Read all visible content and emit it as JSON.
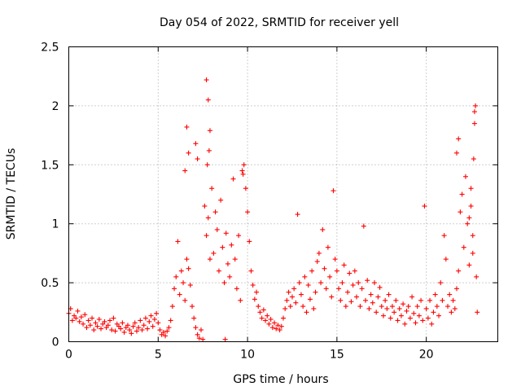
{
  "chart_data": {
    "type": "scatter",
    "title": "Day 054 of 2022, SRMTID for receiver yell",
    "xlabel": "GPS time / hours",
    "ylabel": "SRMTID / TECUs",
    "xlim": [
      0,
      24
    ],
    "ylim": [
      0,
      2.5
    ],
    "xticks": [
      0,
      5,
      10,
      15,
      20
    ],
    "yticks": [
      0,
      0.5,
      1,
      1.5,
      2,
      2.5
    ],
    "xtick_labels": [
      "0",
      "5",
      "10",
      "15",
      "20"
    ],
    "ytick_labels": [
      "0",
      "0.5",
      "1",
      "1.5",
      "2",
      "2.5"
    ],
    "grid": true,
    "marker": "+",
    "series_color": "#ff0000",
    "series": [
      {
        "name": "SRMTID",
        "points": [
          [
            0.0,
            0.24
          ],
          [
            0.1,
            0.28
          ],
          [
            0.2,
            0.18
          ],
          [
            0.3,
            0.22
          ],
          [
            0.4,
            0.2
          ],
          [
            0.5,
            0.26
          ],
          [
            0.6,
            0.17
          ],
          [
            0.7,
            0.21
          ],
          [
            0.8,
            0.15
          ],
          [
            0.9,
            0.23
          ],
          [
            1.0,
            0.12
          ],
          [
            1.1,
            0.18
          ],
          [
            1.2,
            0.14
          ],
          [
            1.3,
            0.2
          ],
          [
            1.4,
            0.1
          ],
          [
            1.5,
            0.16
          ],
          [
            1.6,
            0.13
          ],
          [
            1.7,
            0.19
          ],
          [
            1.8,
            0.11
          ],
          [
            1.9,
            0.15
          ],
          [
            2.0,
            0.17
          ],
          [
            2.1,
            0.12
          ],
          [
            2.2,
            0.14
          ],
          [
            2.3,
            0.18
          ],
          [
            2.4,
            0.1
          ],
          [
            2.5,
            0.2
          ],
          [
            2.6,
            0.09
          ],
          [
            2.7,
            0.15
          ],
          [
            2.8,
            0.13
          ],
          [
            2.9,
            0.11
          ],
          [
            3.0,
            0.16
          ],
          [
            3.1,
            0.08
          ],
          [
            3.2,
            0.12
          ],
          [
            3.3,
            0.14
          ],
          [
            3.4,
            0.1
          ],
          [
            3.5,
            0.07
          ],
          [
            3.6,
            0.13
          ],
          [
            3.7,
            0.16
          ],
          [
            3.8,
            0.09
          ],
          [
            3.9,
            0.12
          ],
          [
            4.0,
            0.18
          ],
          [
            4.1,
            0.1
          ],
          [
            4.2,
            0.14
          ],
          [
            4.3,
            0.2
          ],
          [
            4.4,
            0.11
          ],
          [
            4.5,
            0.17
          ],
          [
            4.6,
            0.22
          ],
          [
            4.7,
            0.13
          ],
          [
            4.8,
            0.19
          ],
          [
            4.9,
            0.24
          ],
          [
            5.0,
            0.16
          ],
          [
            5.1,
            0.1
          ],
          [
            5.2,
            0.06
          ],
          [
            5.3,
            0.08
          ],
          [
            5.4,
            0.05
          ],
          [
            5.5,
            0.09
          ],
          [
            5.6,
            0.12
          ],
          [
            5.7,
            0.18
          ],
          [
            5.8,
            0.3
          ],
          [
            5.9,
            0.45
          ],
          [
            6.0,
            0.55
          ],
          [
            6.1,
            0.85
          ],
          [
            6.2,
            0.4
          ],
          [
            6.3,
            0.6
          ],
          [
            6.4,
            0.5
          ],
          [
            6.5,
            0.35
          ],
          [
            6.6,
            0.7
          ],
          [
            6.7,
            0.62
          ],
          [
            6.8,
            0.48
          ],
          [
            6.9,
            0.3
          ],
          [
            7.0,
            0.2
          ],
          [
            7.1,
            0.12
          ],
          [
            7.2,
            0.06
          ],
          [
            7.3,
            0.03
          ],
          [
            7.4,
            0.1
          ],
          [
            7.5,
            0.02
          ],
          [
            7.6,
            1.15
          ],
          [
            7.7,
            0.9
          ],
          [
            7.8,
            1.05
          ],
          [
            7.9,
            0.7
          ],
          [
            6.6,
            1.82
          ],
          [
            6.7,
            1.6
          ],
          [
            7.1,
            1.68
          ],
          [
            7.2,
            1.55
          ],
          [
            6.5,
            1.45
          ],
          [
            7.7,
            2.22
          ],
          [
            7.8,
            2.05
          ],
          [
            7.9,
            1.79
          ],
          [
            7.85,
            1.62
          ],
          [
            7.75,
            1.5
          ],
          [
            8.0,
            1.3
          ],
          [
            8.1,
            0.75
          ],
          [
            8.2,
            1.1
          ],
          [
            8.3,
            0.95
          ],
          [
            8.4,
            0.6
          ],
          [
            8.5,
            1.2
          ],
          [
            8.6,
            0.8
          ],
          [
            8.7,
            0.5
          ],
          [
            8.8,
            0.92
          ],
          [
            8.9,
            0.66
          ],
          [
            9.0,
            0.55
          ],
          [
            9.1,
            0.82
          ],
          [
            9.2,
            1.38
          ],
          [
            9.3,
            0.7
          ],
          [
            9.4,
            0.45
          ],
          [
            9.5,
            0.9
          ],
          [
            9.6,
            0.35
          ],
          [
            9.7,
            1.45
          ],
          [
            9.8,
            1.5
          ],
          [
            9.9,
            1.3
          ],
          [
            10.0,
            1.1
          ],
          [
            10.1,
            0.85
          ],
          [
            10.2,
            0.6
          ],
          [
            10.3,
            0.48
          ],
          [
            10.4,
            0.36
          ],
          [
            10.5,
            0.42
          ],
          [
            10.6,
            0.3
          ],
          [
            10.7,
            0.25
          ],
          [
            10.8,
            0.2
          ],
          [
            10.9,
            0.27
          ],
          [
            11.0,
            0.18
          ],
          [
            11.1,
            0.22
          ],
          [
            11.2,
            0.15
          ],
          [
            11.3,
            0.19
          ],
          [
            11.4,
            0.12
          ],
          [
            11.5,
            0.16
          ],
          [
            11.6,
            0.11
          ],
          [
            11.7,
            0.14
          ],
          [
            11.8,
            0.1
          ],
          [
            11.9,
            0.13
          ],
          [
            12.0,
            0.2
          ],
          [
            12.1,
            0.28
          ],
          [
            12.2,
            0.35
          ],
          [
            12.3,
            0.42
          ],
          [
            12.4,
            0.3
          ],
          [
            12.5,
            0.38
          ],
          [
            12.6,
            0.45
          ],
          [
            12.7,
            0.33
          ],
          [
            12.8,
            1.08
          ],
          [
            12.9,
            0.5
          ],
          [
            13.0,
            0.4
          ],
          [
            13.1,
            0.3
          ],
          [
            13.2,
            0.55
          ],
          [
            13.3,
            0.25
          ],
          [
            13.4,
            0.48
          ],
          [
            13.5,
            0.36
          ],
          [
            13.6,
            0.6
          ],
          [
            13.7,
            0.28
          ],
          [
            13.8,
            0.42
          ],
          [
            13.9,
            0.68
          ],
          [
            14.0,
            0.75
          ],
          [
            14.1,
            0.5
          ],
          [
            14.2,
            0.95
          ],
          [
            14.3,
            0.62
          ],
          [
            14.4,
            0.45
          ],
          [
            14.5,
            0.8
          ],
          [
            14.6,
            0.55
          ],
          [
            14.7,
            0.38
          ],
          [
            14.8,
            1.28
          ],
          [
            14.9,
            0.7
          ],
          [
            15.0,
            0.6
          ],
          [
            15.1,
            0.45
          ],
          [
            15.2,
            0.35
          ],
          [
            15.3,
            0.5
          ],
          [
            15.4,
            0.65
          ],
          [
            15.5,
            0.3
          ],
          [
            15.6,
            0.42
          ],
          [
            15.7,
            0.58
          ],
          [
            15.8,
            0.34
          ],
          [
            15.9,
            0.48
          ],
          [
            16.0,
            0.6
          ],
          [
            16.1,
            0.38
          ],
          [
            16.2,
            0.5
          ],
          [
            16.3,
            0.3
          ],
          [
            16.4,
            0.45
          ],
          [
            16.5,
            0.98
          ],
          [
            16.6,
            0.35
          ],
          [
            16.7,
            0.52
          ],
          [
            16.8,
            0.28
          ],
          [
            16.9,
            0.4
          ],
          [
            17.0,
            0.33
          ],
          [
            17.1,
            0.5
          ],
          [
            17.2,
            0.25
          ],
          [
            17.3,
            0.38
          ],
          [
            17.4,
            0.46
          ],
          [
            17.5,
            0.3
          ],
          [
            17.6,
            0.22
          ],
          [
            17.7,
            0.35
          ],
          [
            17.8,
            0.28
          ],
          [
            17.9,
            0.4
          ],
          [
            18.0,
            0.2
          ],
          [
            18.1,
            0.3
          ],
          [
            18.2,
            0.25
          ],
          [
            18.3,
            0.35
          ],
          [
            18.4,
            0.18
          ],
          [
            18.5,
            0.28
          ],
          [
            18.6,
            0.22
          ],
          [
            18.7,
            0.32
          ],
          [
            18.8,
            0.15
          ],
          [
            18.9,
            0.26
          ],
          [
            19.0,
            0.3
          ],
          [
            19.1,
            0.2
          ],
          [
            19.2,
            0.38
          ],
          [
            19.3,
            0.24
          ],
          [
            19.4,
            0.16
          ],
          [
            19.5,
            0.3
          ],
          [
            19.6,
            0.22
          ],
          [
            19.7,
            0.35
          ],
          [
            19.8,
            0.18
          ],
          [
            19.9,
            1.15
          ],
          [
            20.0,
            0.28
          ],
          [
            20.1,
            0.2
          ],
          [
            20.2,
            0.35
          ],
          [
            20.3,
            0.15
          ],
          [
            20.4,
            0.25
          ],
          [
            20.5,
            0.4
          ],
          [
            20.6,
            0.3
          ],
          [
            20.7,
            0.22
          ],
          [
            20.8,
            0.5
          ],
          [
            20.9,
            0.35
          ],
          [
            21.0,
            0.9
          ],
          [
            21.1,
            0.7
          ],
          [
            21.2,
            0.3
          ],
          [
            21.3,
            0.4
          ],
          [
            21.4,
            0.25
          ],
          [
            21.5,
            0.35
          ],
          [
            21.6,
            0.28
          ],
          [
            21.7,
            0.45
          ],
          [
            21.8,
            0.6
          ],
          [
            21.9,
            1.1
          ],
          [
            22.0,
            1.25
          ],
          [
            22.1,
            0.8
          ],
          [
            22.2,
            1.4
          ],
          [
            22.3,
            1.0
          ],
          [
            22.4,
            0.65
          ],
          [
            22.5,
            1.15
          ],
          [
            22.6,
            0.9
          ],
          [
            22.7,
            1.85
          ],
          [
            22.75,
            2.0
          ],
          [
            22.8,
            0.55
          ],
          [
            21.7,
            1.6
          ],
          [
            21.8,
            1.72
          ],
          [
            22.65,
            1.55
          ],
          [
            22.7,
            1.95
          ],
          [
            22.5,
            1.3
          ],
          [
            22.85,
            0.25
          ],
          [
            22.6,
            0.75
          ],
          [
            22.4,
            1.05
          ],
          [
            9.75,
            1.42
          ],
          [
            8.75,
            0.02
          ]
        ]
      }
    ]
  }
}
